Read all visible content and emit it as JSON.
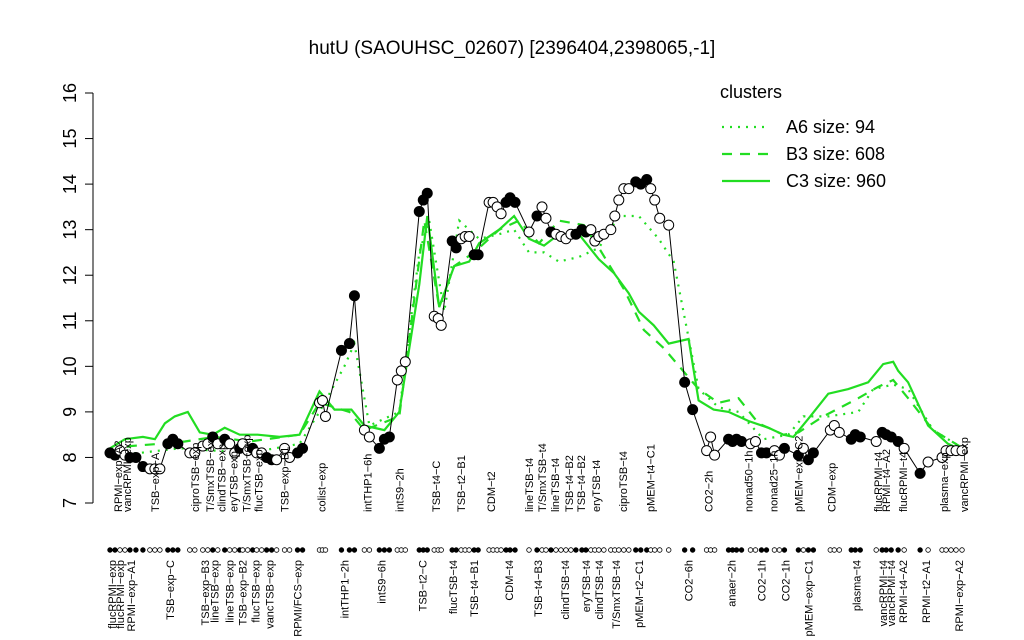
{
  "chart_data": {
    "type": "line",
    "title": "hutU (SAOUHSC_02607) [2396404,2398065,-1]",
    "ylim": [
      7,
      16
    ],
    "yticks": [
      7,
      8,
      9,
      10,
      11,
      12,
      13,
      14,
      15,
      16
    ],
    "xlim": [
      10.5,
      97
    ],
    "x": [
      11,
      11.5,
      12,
      12.5,
      13,
      13.6,
      14.3,
      15,
      15.5,
      16,
      16.8,
      17.3,
      17.8,
      19,
      19.5,
      20.3,
      20.8,
      21.3,
      21.8,
      22.5,
      23,
      23.5,
      24,
      24.3,
      24.8,
      25.3,
      25.7,
      26.2,
      26.7,
      27.2,
      27.7,
      28.5,
      29,
      29.8,
      30.3,
      32,
      32.3,
      32.6,
      34.2,
      35,
      35.5,
      36.5,
      37,
      38,
      38.5,
      39,
      39.8,
      40.2,
      40.6,
      42,
      42.4,
      42.8,
      43.5,
      43.9,
      44.2,
      45.3,
      45.7,
      46.2,
      46.6,
      47,
      47.5,
      47.9,
      49,
      49.4,
      49.8,
      50.2,
      50.7,
      51.1,
      51.6,
      53,
      53.8,
      54.3,
      54.7,
      55.2,
      55.7,
      56.2,
      56.7,
      57.2,
      57.7,
      58.3,
      58.7,
      59.2,
      59.6,
      60,
      60.5,
      61.2,
      61.6,
      62,
      62.5,
      63,
      63.7,
      64.2,
      64.8,
      65.2,
      65.6,
      66.1,
      67,
      68.6,
      69.4,
      70.8,
      71.2,
      71.6,
      73,
      73.4,
      73.8,
      74.3,
      75.2,
      75.7,
      76.3,
      76.8,
      77.6,
      78.1,
      78.6,
      80,
      80.5,
      81,
      81.5,
      83.2,
      83.6,
      84.1,
      85.3,
      85.7,
      86.2,
      87.8,
      88.4,
      88.8,
      89.3,
      90,
      90.6,
      92.2,
      93,
      94.4,
      94.8,
      95.3,
      95.8,
      96.4
    ],
    "values": [
      8.1,
      8.05,
      8.15,
      8.05,
      8,
      8,
      7.8,
      7.75,
      7.75,
      7.75,
      8.3,
      8.4,
      8.3,
      8.1,
      8.1,
      8.25,
      8.3,
      8.45,
      8.3,
      8.4,
      8.3,
      8.1,
      8.2,
      8.3,
      8.15,
      8.2,
      8.1,
      8.1,
      8,
      7.95,
      7.95,
      8.2,
      8,
      8.1,
      8.2,
      9.2,
      9.25,
      8.9,
      10.35,
      10.5,
      11.55,
      8.6,
      8.45,
      8.2,
      8.4,
      8.45,
      9.7,
      9.9,
      10.1,
      13.4,
      13.65,
      13.8,
      11.1,
      11.05,
      10.9,
      12.75,
      12.6,
      12.8,
      12.85,
      12.85,
      12.45,
      12.45,
      13.6,
      13.6,
      13.5,
      13.35,
      13.6,
      13.7,
      13.6,
      12.95,
      13.3,
      13.5,
      13.25,
      12.95,
      12.9,
      12.85,
      12.8,
      12.9,
      12.9,
      13,
      12.95,
      13,
      12.75,
      12.85,
      12.9,
      13,
      13.3,
      13.65,
      13.9,
      13.9,
      14.05,
      14,
      14.1,
      13.9,
      13.65,
      13.25,
      13.1,
      9.65,
      9.05,
      8.15,
      8.45,
      8.05,
      8.4,
      8.35,
      8.4,
      8.35,
      8.3,
      8.35,
      8.1,
      8.1,
      8.15,
      8.05,
      8.2,
      8.05,
      8.2,
      7.95,
      8.1,
      8.6,
      8.7,
      8.55,
      8.4,
      8.5,
      8.45,
      8.35,
      8.55,
      8.5,
      8.45,
      8.35,
      8.2,
      7.65,
      7.9,
      8,
      8.15,
      8.15,
      8.15,
      8.15
    ],
    "marker_fill": [
      "black",
      "black",
      "white",
      "white",
      "black",
      "black",
      "black",
      "white",
      "white",
      "white",
      "black",
      "black",
      "black",
      "white",
      "white",
      "white",
      "white",
      "black",
      "white",
      "black",
      "white",
      "white",
      "black",
      "white",
      "white",
      "black",
      "white",
      "white",
      "black",
      "black",
      "white",
      "white",
      "white",
      "black",
      "black",
      "white",
      "white",
      "white",
      "black",
      "black",
      "black",
      "white",
      "white",
      "black",
      "black",
      "black",
      "white",
      "white",
      "white",
      "black",
      "black",
      "black",
      "white",
      "white",
      "white",
      "black",
      "black",
      "white",
      "white",
      "white",
      "black",
      "black",
      "white",
      "white",
      "white",
      "white",
      "black",
      "black",
      "black",
      "white",
      "black",
      "white",
      "white",
      "black",
      "white",
      "white",
      "white",
      "white",
      "black",
      "black",
      "black",
      "white",
      "white",
      "white",
      "white",
      "white",
      "white",
      "white",
      "white",
      "white",
      "black",
      "black",
      "black",
      "white",
      "white",
      "white",
      "white",
      "black",
      "black",
      "white",
      "white",
      "white",
      "black",
      "black",
      "black",
      "black",
      "white",
      "white",
      "black",
      "black",
      "white",
      "white",
      "black",
      "black",
      "white",
      "black",
      "black",
      "white",
      "white",
      "white",
      "black",
      "black",
      "black",
      "white",
      "black",
      "black",
      "black",
      "black",
      "white",
      "black",
      "white",
      "white",
      "white",
      "white",
      "white",
      "white"
    ],
    "legend_title": "clusters",
    "series": [
      {
        "name": "A6 size: 94",
        "color": "#22dd22",
        "line_style": "dotted",
        "x": [
          11,
          14,
          18,
          21.5,
          25,
          30,
          32,
          34.5,
          35.5,
          37,
          40,
          42,
          43,
          44.5,
          46,
          48,
          50,
          51.5,
          53,
          54.5,
          56,
          58,
          60,
          62,
          64,
          66,
          67.5,
          70,
          72,
          74,
          76.5,
          79,
          80.5,
          83,
          86,
          87.5,
          89.5,
          91,
          93.5,
          96.5
        ],
        "values": [
          8.05,
          8.1,
          8.2,
          8.15,
          8.1,
          8.3,
          9,
          10,
          10.5,
          8.7,
          9,
          12.5,
          13.2,
          11.2,
          13.2,
          12.8,
          12.9,
          13,
          12.5,
          12.5,
          12.3,
          12.4,
          12.6,
          13.3,
          13.3,
          12.8,
          12.3,
          9.5,
          9.1,
          9,
          8.4,
          8.5,
          8.9,
          8.9,
          9,
          9.5,
          9.6,
          9.5,
          8.6,
          8.2
        ]
      },
      {
        "name": "B3 size: 608",
        "color": "#22dd22",
        "line_style": "dashed",
        "x": [
          11,
          13,
          16,
          18.5,
          21.5,
          25,
          30,
          32,
          35,
          36.5,
          40,
          42.5,
          44,
          45.5,
          47.5,
          50,
          52,
          54,
          56,
          58.5,
          60,
          62.5,
          64.5,
          66.5,
          70,
          72,
          74,
          76,
          78.5,
          80,
          82.5,
          86,
          88,
          89.5,
          91,
          93.5,
          96.5
        ],
        "values": [
          8.1,
          8.25,
          8.3,
          8.35,
          8.45,
          8.35,
          8.5,
          9.2,
          9,
          8.6,
          8.9,
          13.2,
          11.3,
          12.2,
          12.5,
          13,
          13.2,
          12.7,
          13.2,
          13.1,
          12.6,
          11.7,
          10.8,
          10.4,
          9.5,
          9.2,
          9.3,
          8.75,
          8.5,
          8.55,
          8.9,
          9.3,
          9.55,
          9.7,
          9.3,
          8.6,
          8.2
        ]
      },
      {
        "name": "C3 size: 960",
        "color": "#22dd22",
        "line_style": "solid",
        "x": [
          11,
          12.5,
          14.3,
          15.5,
          16.5,
          17.5,
          18.8,
          20,
          21.3,
          22.5,
          24,
          25.8,
          28,
          30,
          32,
          33.5,
          35.2,
          36.5,
          38.5,
          40,
          42,
          42.8,
          44,
          45.5,
          47,
          48,
          50,
          51.5,
          53,
          54.5,
          56,
          58,
          60,
          61.5,
          63,
          64,
          65.5,
          67,
          69,
          70,
          71.5,
          73,
          75,
          77,
          78.5,
          79.5,
          81,
          83,
          85,
          87,
          88.5,
          89.5,
          90,
          91,
          93,
          95,
          96.5
        ],
        "values": [
          8.2,
          8.4,
          8.45,
          8.4,
          8.75,
          8.9,
          9,
          8.55,
          8.5,
          8.65,
          8.5,
          8.5,
          8.45,
          8.5,
          9.45,
          9.05,
          9.05,
          8.7,
          8.6,
          9,
          11.8,
          13.3,
          11.3,
          12.2,
          12.3,
          12.7,
          13,
          13.3,
          12.8,
          12.65,
          12.9,
          12.9,
          12.35,
          12.05,
          11.6,
          11.2,
          10.9,
          10.5,
          10.6,
          9.25,
          9.05,
          9,
          8.8,
          8.65,
          8.5,
          8.45,
          8.85,
          9.4,
          9.5,
          9.65,
          10.05,
          10.1,
          9.9,
          9.65,
          8.7,
          8.3,
          8.15
        ]
      }
    ],
    "bottom_labels": [
      {
        "value": 11.2,
        "label": "flucRPMI−exp"
      },
      {
        "value": 12,
        "label": "flucRPMI−exp"
      },
      {
        "value": 13.1,
        "label": "RPMI−exp−A1"
      },
      {
        "value": 17,
        "label": "TSB−exp−C"
      },
      {
        "value": 20.5,
        "label": "TSB−exp−B3"
      },
      {
        "value": 21.5,
        "label": "lineTSB−exp"
      },
      {
        "value": 23,
        "label": "lineTSB−exp"
      },
      {
        "value": 24.3,
        "label": "TSB−exp−B2"
      },
      {
        "value": 25.6,
        "label": "flucTSB−exp"
      },
      {
        "value": 27,
        "label": "vancTSB−exp"
      },
      {
        "value": 29.8,
        "label": "RPMI/FCS−exp"
      },
      {
        "value": 34.5,
        "label": "intTHP1−2h"
      },
      {
        "value": 38.2,
        "label": "intS9−6h"
      },
      {
        "value": 42.3,
        "label": "TSB−t2−C"
      },
      {
        "value": 45.4,
        "label": "flucTSB−t4"
      },
      {
        "value": 47.5,
        "label": "TSB−t4−B1"
      },
      {
        "value": 51,
        "label": "CDM−t4"
      },
      {
        "value": 53.9,
        "label": "TSB−t4−B3"
      },
      {
        "value": 56.6,
        "label": "clindTSB−t4"
      },
      {
        "value": 58.7,
        "label": "eryTSB−t4"
      },
      {
        "value": 60,
        "label": "clindTSB−t4"
      },
      {
        "value": 61.7,
        "label": "T/SmxTSB−t4"
      },
      {
        "value": 64,
        "label": "pMEM−t2−C1"
      },
      {
        "value": 69,
        "label": "CO2−6h"
      },
      {
        "value": 73.3,
        "label": "anaer−2h"
      },
      {
        "value": 76.3,
        "label": "CO2−1h"
      },
      {
        "value": 78.7,
        "label": "CO2−1h"
      },
      {
        "value": 81,
        "label": "pMEM−exp−C1"
      },
      {
        "value": 85.8,
        "label": "plasma−t4"
      },
      {
        "value": 88.5,
        "label": "vancRPMI−t4"
      },
      {
        "value": 89.3,
        "label": "vancRPMI−t4"
      },
      {
        "value": 90.5,
        "label": "RPMI−t4−A2"
      },
      {
        "value": 92.8,
        "label": "RPMI−t2−A1"
      },
      {
        "value": 96.1,
        "label": "RPMI−exp−A2"
      }
    ],
    "top_labels": [
      {
        "value": 11.8,
        "label": "RPMI−exp−A2"
      },
      {
        "value": 12.7,
        "label": "vancRPMI−exp"
      },
      {
        "value": 15.5,
        "label": "TSB−exp−A"
      },
      {
        "value": 19.5,
        "label": "ciproTSB−exp"
      },
      {
        "value": 21,
        "label": "T/SmxTSB−exp"
      },
      {
        "value": 22.2,
        "label": "clindTSB−exp"
      },
      {
        "value": 23.4,
        "label": "eryTSB−exp"
      },
      {
        "value": 24.7,
        "label": "T/SmxTSB−exp"
      },
      {
        "value": 25.9,
        "label": "flucTSB−exp"
      },
      {
        "value": 28.5,
        "label": "TSB−exp−B1"
      },
      {
        "value": 32.2,
        "label": "colist−exp"
      },
      {
        "value": 36.8,
        "label": "intTHP1−6h"
      },
      {
        "value": 40,
        "label": "intS9−2h"
      },
      {
        "value": 43.7,
        "label": "TSB−t4−C"
      },
      {
        "value": 46.2,
        "label": "TSB−t2−B1"
      },
      {
        "value": 49.2,
        "label": "CDM−t2"
      },
      {
        "value": 53,
        "label": "lineTSB−t4"
      },
      {
        "value": 54.3,
        "label": "T/SmxTSB−t4"
      },
      {
        "value": 55.6,
        "label": "lineTSB−t4"
      },
      {
        "value": 57,
        "label": "TSB−t4−B2"
      },
      {
        "value": 58.2,
        "label": "TSB−t4−B2"
      },
      {
        "value": 59.7,
        "label": "eryTSB−t4"
      },
      {
        "value": 62.4,
        "label": "ciproTSB−t4"
      },
      {
        "value": 65.2,
        "label": "pMEM−t4−C1"
      },
      {
        "value": 71,
        "label": "CO2−2h"
      },
      {
        "value": 75,
        "label": "nonad50−1h"
      },
      {
        "value": 77.5,
        "label": "nonad25−1h"
      },
      {
        "value": 80,
        "label": "pMEM−exp−C2"
      },
      {
        "value": 83.3,
        "label": "CDM−exp"
      },
      {
        "value": 88,
        "label": "flucRPMI−t4"
      },
      {
        "value": 88.8,
        "label": "RPMI−t4−A2"
      },
      {
        "value": 90.5,
        "label": "flucRPMI−t4"
      },
      {
        "value": 94.6,
        "label": "plasma−exp"
      },
      {
        "value": 96.6,
        "label": "vancRPMI−exp"
      }
    ]
  }
}
